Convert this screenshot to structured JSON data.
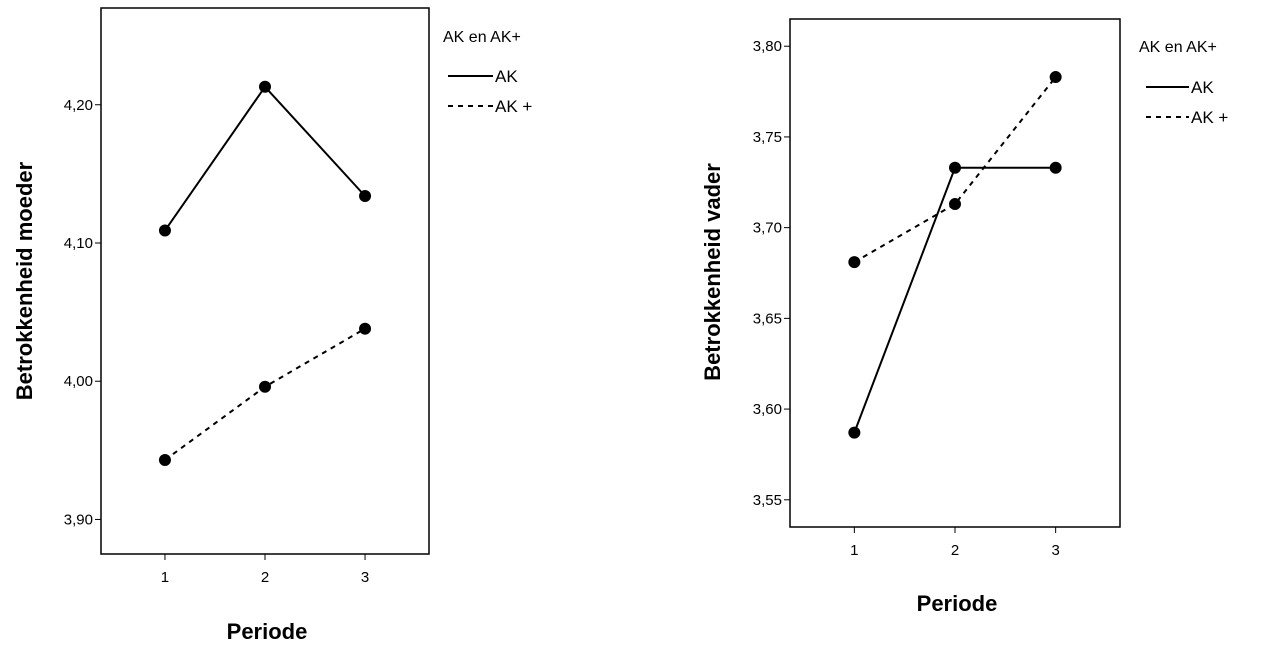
{
  "chart_data": [
    {
      "type": "line",
      "title": "",
      "xlabel": "Periode",
      "ylabel": "Betrokkenheid moeder",
      "categories": [
        "1",
        "2",
        "3"
      ],
      "ylim": [
        3.875,
        4.27
      ],
      "yticks": [
        "3,90",
        "4,00",
        "4,10",
        "4,20"
      ],
      "ytick_values": [
        3.9,
        4.0,
        4.1,
        4.2
      ],
      "legend_title": "AK en AK+",
      "legend_position": "top-right, outside plot",
      "grid": false,
      "series": [
        {
          "name": "AK",
          "style": "solid",
          "values": [
            4.109,
            4.213,
            4.134
          ]
        },
        {
          "name": "AK +",
          "style": "dashed",
          "values": [
            3.943,
            3.996,
            4.038
          ]
        }
      ]
    },
    {
      "type": "line",
      "title": "",
      "xlabel": "Periode",
      "ylabel": "Betrokkenheid vader",
      "categories": [
        "1",
        "2",
        "3"
      ],
      "ylim": [
        3.535,
        3.815
      ],
      "yticks": [
        "3,55",
        "3,60",
        "3,65",
        "3,70",
        "3,75",
        "3,80"
      ],
      "ytick_values": [
        3.55,
        3.6,
        3.65,
        3.7,
        3.75,
        3.8
      ],
      "legend_title": "AK en AK+",
      "legend_position": "top-right, outside plot",
      "grid": false,
      "series": [
        {
          "name": "AK",
          "style": "solid",
          "values": [
            3.587,
            3.733,
            3.733
          ]
        },
        {
          "name": "AK +",
          "style": "dashed",
          "values": [
            3.681,
            3.713,
            3.783
          ]
        }
      ]
    }
  ]
}
